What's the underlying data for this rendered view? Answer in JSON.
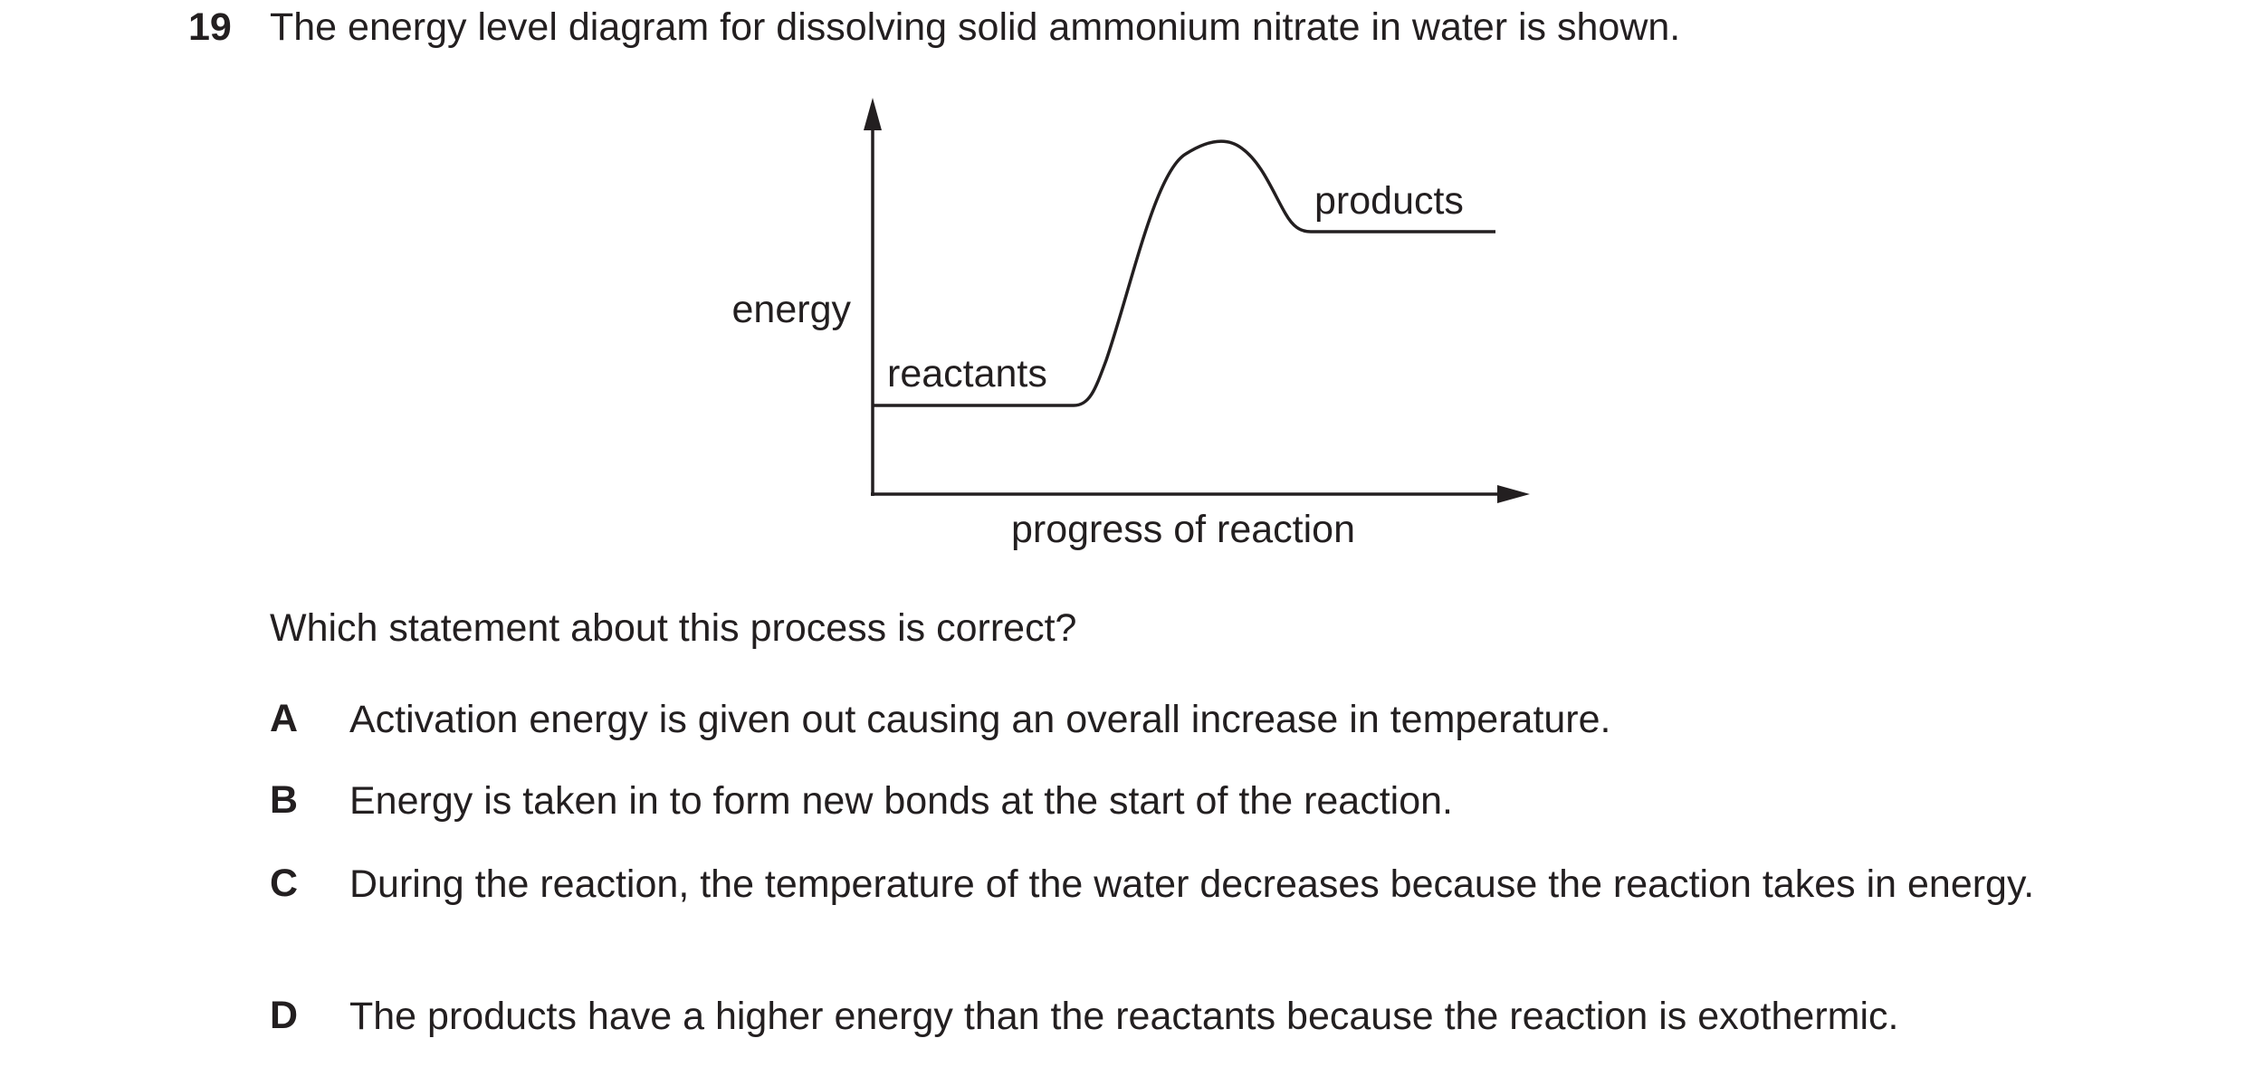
{
  "question": {
    "number": "19",
    "stem": "The energy level diagram for dissolving solid ammonium nitrate in water is shown.",
    "prompt": "Which statement about this process is correct?"
  },
  "diagram": {
    "y_axis_label": "energy",
    "x_axis_label": "progress of reaction",
    "reactants_label": "reactants",
    "products_label": "products"
  },
  "options": [
    {
      "letter": "A",
      "text": "Activation energy is given out causing an overall increase in temperature."
    },
    {
      "letter": "B",
      "text": "Energy is taken in to form new bonds at the start of the reaction."
    },
    {
      "letter": "C",
      "text": "During the reaction, the temperature of the water decreases because the reaction takes in energy."
    },
    {
      "letter": "D",
      "text": "The products have a higher energy than the reactants because the reaction is exothermic."
    }
  ]
}
